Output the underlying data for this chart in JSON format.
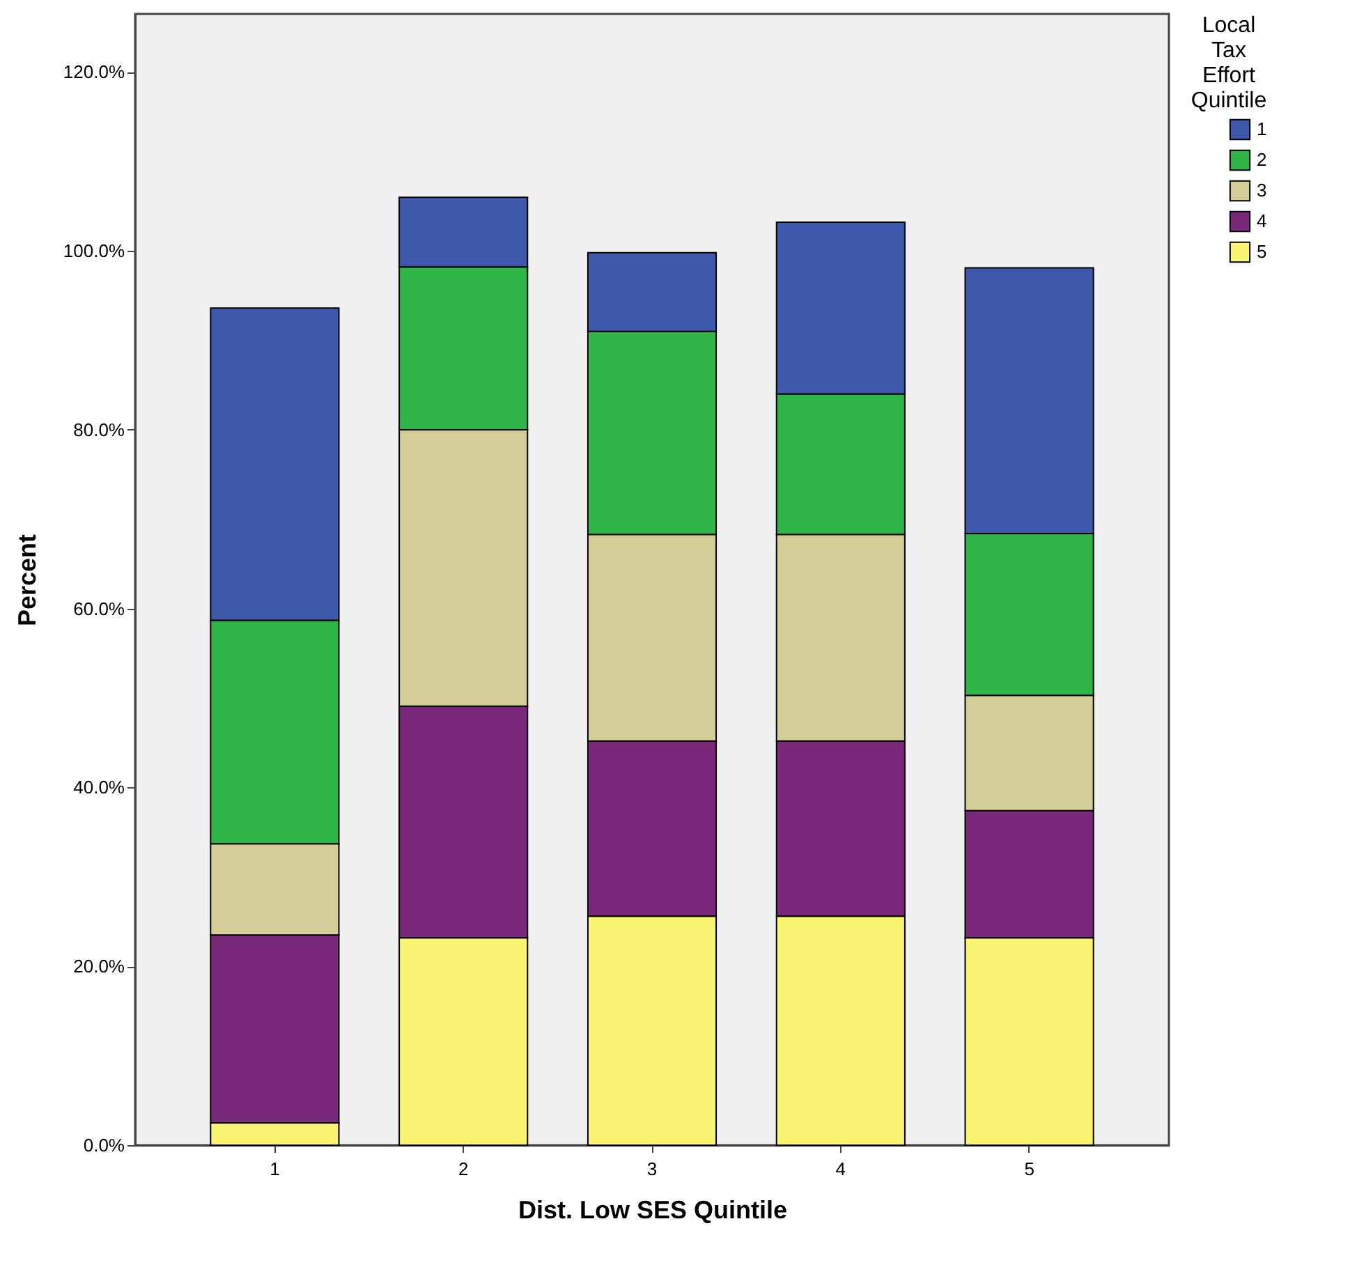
{
  "chart_data": {
    "type": "bar",
    "stacked": true,
    "xlabel": "Dist. Low SES Quintile",
    "ylabel": "Percent",
    "legend_title": "Local Tax Effort Quintile",
    "legend": "top right",
    "grid": false,
    "categories": [
      "1",
      "2",
      "3",
      "4",
      "5"
    ],
    "ylim": [
      0,
      126.5
    ],
    "yticks": [
      {
        "value": 0,
        "label": "0.0%"
      },
      {
        "value": 20,
        "label": "20.0%"
      },
      {
        "value": 40,
        "label": "40.0%"
      },
      {
        "value": 60,
        "label": "60.0%"
      },
      {
        "value": 80,
        "label": "80.0%"
      },
      {
        "value": 100,
        "label": "100.0%"
      },
      {
        "value": 120,
        "label": "120.0%"
      }
    ],
    "series": [
      {
        "name": "5",
        "color": "#f9f573",
        "values": [
          2.5,
          23.2,
          25.6,
          25.6,
          23.2
        ]
      },
      {
        "name": "4",
        "color": "#79287a",
        "values": [
          21.0,
          25.9,
          19.6,
          19.6,
          14.2
        ]
      },
      {
        "name": "3",
        "color": "#d3ce97",
        "values": [
          10.2,
          30.9,
          23.1,
          23.1,
          12.9
        ]
      },
      {
        "name": "2",
        "color": "#2fb548",
        "values": [
          25.0,
          18.2,
          22.7,
          15.7,
          18.1
        ]
      },
      {
        "name": "1",
        "color": "#3e58ac",
        "values": [
          34.9,
          7.8,
          8.8,
          19.2,
          29.7
        ]
      }
    ]
  }
}
